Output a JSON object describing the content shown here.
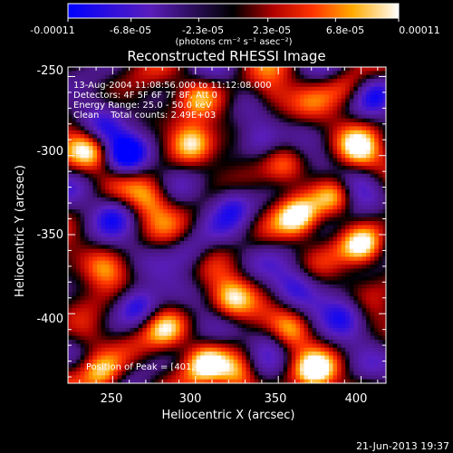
{
  "chart_data": {
    "type": "heatmap",
    "title": "Reconstructed RHESSI Image",
    "xlabel": "Heliocentric X (arcsec)",
    "ylabel": "Heliocentric Y (arcsec)",
    "xlim": [
      223,
      415
    ],
    "ylim": [
      -444,
      -244
    ],
    "x_ticks": [
      250,
      300,
      350,
      400
    ],
    "y_ticks": [
      -250,
      -300,
      -350,
      -400
    ],
    "colorbar": {
      "range": [
        -0.00011,
        0.00011
      ],
      "tick_values": [
        -0.00011,
        -6.8e-05,
        -2.3e-05,
        2.3e-05,
        6.8e-05,
        0.00011
      ],
      "tick_labels": [
        "-0.00011",
        "-6.8e-05",
        "-2.3e-05",
        "2.3e-05",
        "6.8e-05",
        "0.00011"
      ],
      "unit_label": "(photons cm⁻² s⁻¹ asec⁻²)"
    },
    "annotations": [
      "13-Aug-2004 11:08:56.000 to 11:12:08.000",
      "Detectors: 4F 5F 6F 7F 8F, Att 0",
      "Energy Range: 25.0 - 50.0 keV",
      "Clean    Total counts: 2.49E+03"
    ],
    "peak_label": "Position of Peak = [401,-358]",
    "peak": [
      401,
      -358
    ],
    "features": [
      {
        "x": 401,
        "y": -358,
        "v": 1.0
      },
      {
        "x": 362,
        "y": -339,
        "v": 0.95
      },
      {
        "x": 384,
        "y": -326,
        "v": 0.8
      },
      {
        "x": 298,
        "y": -292,
        "v": 0.85
      },
      {
        "x": 273,
        "y": -327,
        "v": 0.7
      },
      {
        "x": 237,
        "y": -297,
        "v": 0.75
      },
      {
        "x": 398,
        "y": -296,
        "v": 0.8
      },
      {
        "x": 354,
        "y": -305,
        "v": 0.55
      },
      {
        "x": 345,
        "y": -262,
        "v": 0.6
      },
      {
        "x": 302,
        "y": -262,
        "v": 0.55
      },
      {
        "x": 392,
        "y": -258,
        "v": 0.5
      },
      {
        "x": 322,
        "y": -392,
        "v": 0.75
      },
      {
        "x": 282,
        "y": -410,
        "v": 0.7
      },
      {
        "x": 357,
        "y": -410,
        "v": 0.6
      },
      {
        "x": 245,
        "y": -372,
        "v": 0.5
      },
      {
        "x": 244,
        "y": -438,
        "v": 0.9
      },
      {
        "x": 306,
        "y": -431,
        "v": 0.85
      },
      {
        "x": 326,
        "y": -438,
        "v": 0.9
      },
      {
        "x": 372,
        "y": -437,
        "v": 0.85
      },
      {
        "x": 235,
        "y": -415,
        "v": 0.5
      },
      {
        "x": 258,
        "y": -300,
        "v": -1.0
      },
      {
        "x": 244,
        "y": -284,
        "v": -0.75
      },
      {
        "x": 250,
        "y": -335,
        "v": -0.55
      },
      {
        "x": 339,
        "y": -290,
        "v": -0.6
      },
      {
        "x": 322,
        "y": -330,
        "v": -0.65
      },
      {
        "x": 297,
        "y": -362,
        "v": -0.55
      },
      {
        "x": 398,
        "y": -318,
        "v": -0.5
      },
      {
        "x": 265,
        "y": -395,
        "v": -0.8
      },
      {
        "x": 390,
        "y": -400,
        "v": -0.7
      },
      {
        "x": 360,
        "y": -381,
        "v": -0.5
      },
      {
        "x": 345,
        "y": -416,
        "v": -0.55
      },
      {
        "x": 410,
        "y": -260,
        "v": -0.45
      }
    ]
  },
  "footer": {
    "datetime": "21-Jun-2013 19:37"
  }
}
